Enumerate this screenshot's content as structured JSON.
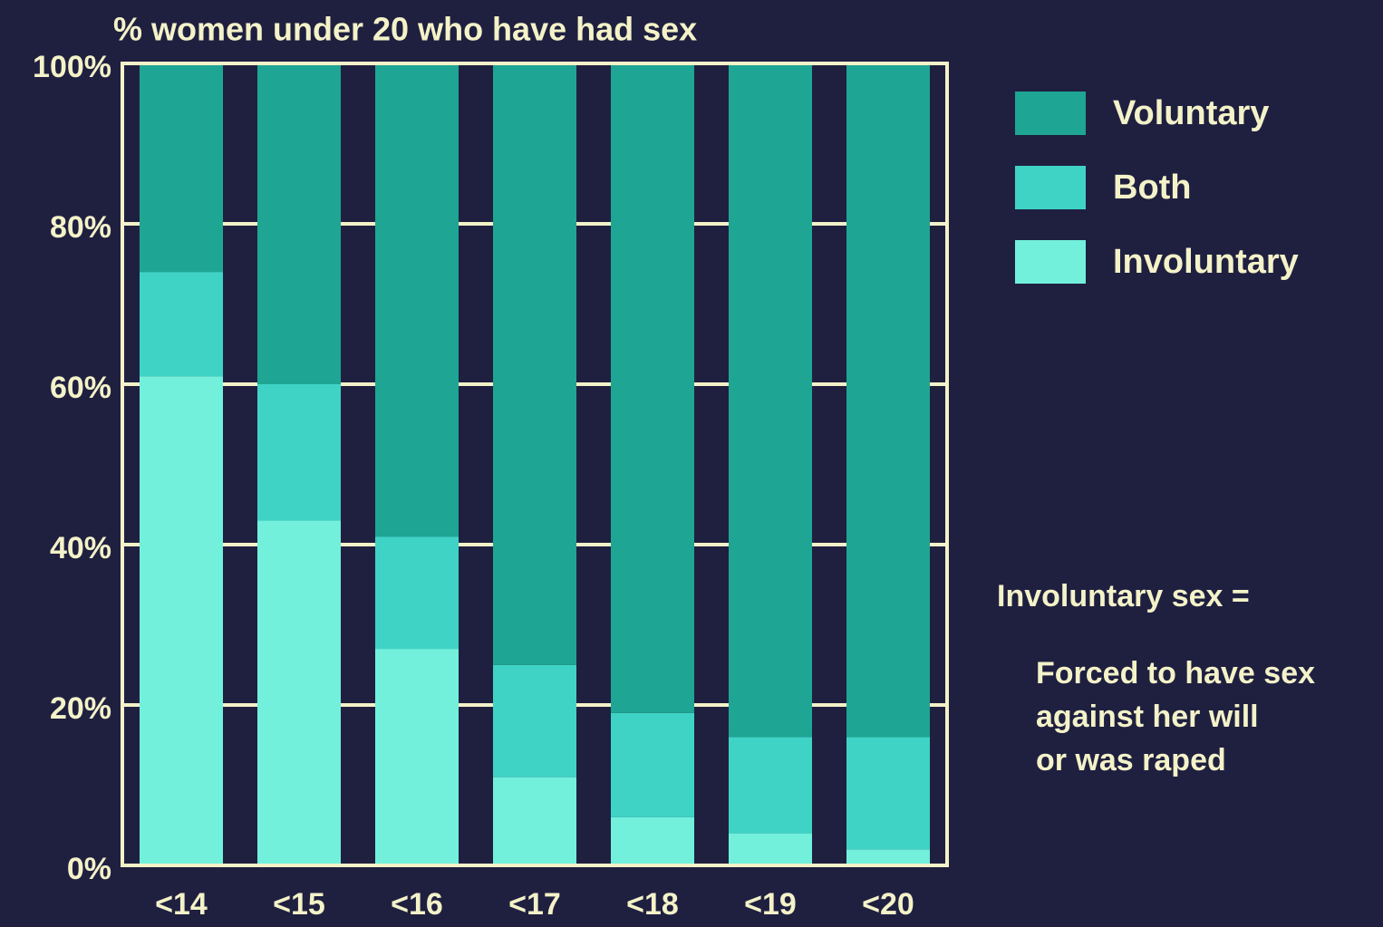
{
  "chart_data": {
    "type": "stacked_bar",
    "title": "% women under 20 who have had sex",
    "categories": [
      "<14",
      "<15",
      "<16",
      "<17",
      "<18",
      "<19",
      "<20"
    ],
    "series": [
      {
        "name": "Voluntary",
        "color": "#1fa593",
        "values": [
          26,
          40,
          59,
          75,
          81,
          84,
          84
        ]
      },
      {
        "name": "Both",
        "color": "#3fd3c6",
        "values": [
          13,
          17,
          14,
          14,
          13,
          12,
          14
        ]
      },
      {
        "name": "Involuntary",
        "color": "#72f0dc",
        "values": [
          61,
          43,
          27,
          11,
          6,
          4,
          2
        ]
      }
    ],
    "ylim": [
      0,
      100
    ],
    "yticks": [
      {
        "value": 0,
        "label": "0%"
      },
      {
        "value": 20,
        "label": "20%"
      },
      {
        "value": 40,
        "label": "40%"
      },
      {
        "value": 60,
        "label": "60%"
      },
      {
        "value": 80,
        "label": "80%"
      },
      {
        "value": 100,
        "label": "100%"
      }
    ],
    "grid": true,
    "legend": "right",
    "annotation": {
      "heading": "Involuntary sex =",
      "lines": [
        "Forced to have sex",
        "against her will",
        "or was raped"
      ]
    }
  }
}
